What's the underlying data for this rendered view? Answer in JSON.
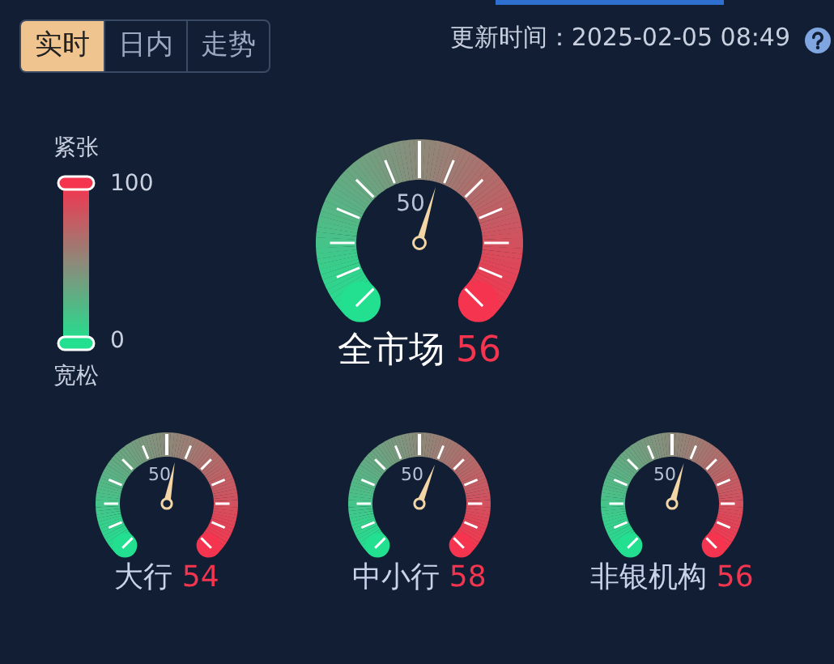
{
  "chart_data": {
    "type": "other",
    "categories": [
      "全市场",
      "大行",
      "中小行",
      "非银机构"
    ],
    "values": [
      56,
      54,
      58,
      56
    ],
    "data_labels": true,
    "annotations": [
      "紧张",
      "100",
      "0",
      "宽松",
      "50",
      "更新时间：2025-02-05 08:49",
      "实时",
      "日内",
      "走势"
    ]
  }
}
